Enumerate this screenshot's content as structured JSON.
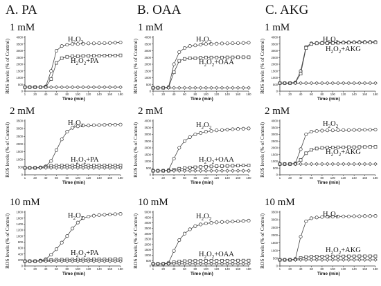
{
  "columns": [
    {
      "label": "A. PA"
    },
    {
      "label": "B. OAA"
    },
    {
      "label": "C. AKG"
    }
  ],
  "common": {
    "ylabel": "ROS levels (% of Control)",
    "xlabel": "Time (min)",
    "x_ticks": [
      "1",
      "20",
      "40",
      "60",
      "80",
      "100",
      "120",
      "140",
      "160",
      "180"
    ]
  },
  "chart_data": [
    {
      "type": "line",
      "panel": "A1",
      "conc_label": "1 mM",
      "xlabel": "Time (min)",
      "ylabel": "ROS levels (% of Control)",
      "x": [
        1,
        10,
        20,
        30,
        40,
        50,
        60,
        70,
        80,
        90,
        100,
        110,
        120,
        130,
        140,
        150,
        160,
        170,
        180
      ],
      "ylim": [
        0,
        4000
      ],
      "y_ticks": [
        "0",
        "500",
        "1000",
        "1500",
        "2000",
        "2500",
        "3000",
        "3500",
        "4000"
      ],
      "series": [
        {
          "name": "H2O2",
          "marker": "circle",
          "values": [
            300,
            300,
            300,
            300,
            350,
            1500,
            3000,
            3350,
            3450,
            3500,
            3500,
            3520,
            3550,
            3550,
            3560,
            3570,
            3580,
            3600,
            3620
          ]
        },
        {
          "name": "H2O2+PA",
          "marker": "square",
          "values": [
            300,
            300,
            300,
            300,
            320,
            900,
            2100,
            2450,
            2550,
            2600,
            2600,
            2620,
            2620,
            2630,
            2630,
            2640,
            2650,
            2650,
            2660
          ]
        },
        {
          "name": "",
          "marker": "diamond",
          "values": [
            300,
            300,
            300,
            300,
            300,
            300,
            300,
            300,
            300,
            300,
            300,
            300,
            300,
            300,
            300,
            300,
            300,
            300,
            300
          ]
        }
      ],
      "labels": [
        "H2O2",
        "H2O2+PA"
      ]
    },
    {
      "type": "line",
      "panel": "B1",
      "conc_label": "1 mM",
      "xlabel": "Time (min)",
      "ylabel": "ROS levels (% of Control)",
      "x": [
        1,
        10,
        20,
        30,
        40,
        50,
        60,
        70,
        80,
        90,
        100,
        110,
        120,
        130,
        140,
        150,
        160,
        170,
        180
      ],
      "ylim": [
        0,
        4000
      ],
      "y_ticks": [
        "0",
        "500",
        "1000",
        "1500",
        "2000",
        "2500",
        "3000",
        "3500",
        "4000"
      ],
      "series": [
        {
          "name": "H2O2",
          "marker": "circle",
          "values": [
            250,
            250,
            250,
            300,
            2000,
            2900,
            3200,
            3350,
            3400,
            3450,
            3500,
            3500,
            3520,
            3540,
            3550,
            3560,
            3570,
            3580,
            3600
          ]
        },
        {
          "name": "H2O2+OAA",
          "marker": "square",
          "values": [
            250,
            250,
            250,
            280,
            1400,
            2250,
            2400,
            2450,
            2450,
            2480,
            2500,
            2500,
            2500,
            2500,
            2510,
            2510,
            2520,
            2520,
            2520
          ]
        },
        {
          "name": "",
          "marker": "diamond",
          "values": [
            250,
            250,
            250,
            250,
            250,
            250,
            250,
            250,
            250,
            250,
            250,
            250,
            250,
            250,
            250,
            250,
            250,
            250,
            250
          ]
        }
      ],
      "labels": [
        "H2O2",
        "H2O2+OAA"
      ]
    },
    {
      "type": "line",
      "panel": "C1",
      "conc_label": "1 mM",
      "xlabel": "Time (min)",
      "ylabel": "ROS levels (% of Control)",
      "x": [
        1,
        10,
        20,
        30,
        40,
        50,
        60,
        70,
        80,
        90,
        100,
        110,
        120,
        130,
        140,
        150,
        160,
        170,
        180
      ],
      "ylim": [
        0,
        4000
      ],
      "y_ticks": [
        "0",
        "500",
        "1000",
        "1500",
        "2000",
        "2500",
        "3000",
        "3500",
        "4000"
      ],
      "series": [
        {
          "name": "H2O2",
          "marker": "circle",
          "values": [
            600,
            600,
            600,
            650,
            1500,
            3300,
            3550,
            3580,
            3600,
            3600,
            3620,
            3620,
            3630,
            3640,
            3640,
            3650,
            3650,
            3650,
            3660
          ]
        },
        {
          "name": "H2O2+AKG",
          "marker": "square",
          "values": [
            600,
            600,
            600,
            630,
            1300,
            3200,
            3500,
            3550,
            3560,
            3570,
            3580,
            3590,
            3600,
            3600,
            3610,
            3610,
            3620,
            3620,
            3620
          ]
        },
        {
          "name": "",
          "marker": "diamond",
          "values": [
            600,
            600,
            600,
            600,
            600,
            600,
            600,
            600,
            600,
            600,
            600,
            600,
            600,
            600,
            600,
            600,
            600,
            600,
            600
          ]
        }
      ],
      "labels": [
        "H2O2",
        "H2O2+AKG"
      ]
    },
    {
      "type": "line",
      "panel": "A2",
      "conc_label": "2 mM",
      "xlabel": "Time (min)",
      "ylabel": "ROS levels (% of Control)",
      "x": [
        1,
        10,
        20,
        30,
        40,
        50,
        60,
        70,
        80,
        90,
        100,
        110,
        120,
        130,
        140,
        150,
        160,
        170,
        180
      ],
      "ylim": [
        0,
        3500
      ],
      "y_ticks": [
        "0",
        "500",
        "1000",
        "1500",
        "2000",
        "2500",
        "3000",
        "3500"
      ],
      "series": [
        {
          "name": "H2O2",
          "marker": "circle",
          "values": [
            450,
            450,
            450,
            480,
            550,
            900,
            1600,
            2300,
            2800,
            3050,
            3150,
            3200,
            3200,
            3220,
            3230,
            3240,
            3250,
            3250,
            3260
          ]
        },
        {
          "name": "H2O2+PA",
          "marker": "square",
          "values": [
            450,
            450,
            450,
            470,
            520,
            580,
            600,
            600,
            600,
            600,
            600,
            600,
            600,
            600,
            610,
            610,
            610,
            610,
            610
          ]
        },
        {
          "name": "",
          "marker": "diamond",
          "values": [
            450,
            450,
            450,
            450,
            450,
            450,
            450,
            450,
            450,
            450,
            450,
            450,
            450,
            450,
            450,
            450,
            450,
            450,
            450
          ]
        }
      ],
      "labels": [
        "H2O2",
        "H2O2+PA"
      ]
    },
    {
      "type": "line",
      "panel": "B2",
      "conc_label": "2 mM",
      "xlabel": "Time (min)",
      "ylabel": "ROS levels (% of Control)",
      "x": [
        1,
        10,
        20,
        30,
        40,
        50,
        60,
        70,
        80,
        90,
        100,
        110,
        120,
        130,
        140,
        150,
        160,
        170,
        180
      ],
      "ylim": [
        0,
        4000
      ],
      "y_ticks": [
        "0",
        "500",
        "1000",
        "1500",
        "2000",
        "2500",
        "3000",
        "3500",
        "4000"
      ],
      "series": [
        {
          "name": "H2O2",
          "marker": "circle",
          "values": [
            300,
            300,
            300,
            350,
            1200,
            2000,
            2500,
            2800,
            3000,
            3100,
            3200,
            3250,
            3300,
            3320,
            3350,
            3380,
            3400,
            3420,
            3440
          ]
        },
        {
          "name": "H2O2+OAA",
          "marker": "square",
          "values": [
            300,
            300,
            300,
            300,
            380,
            450,
            500,
            530,
            560,
            580,
            600,
            620,
            640,
            650,
            660,
            670,
            680,
            690,
            700
          ]
        },
        {
          "name": "",
          "marker": "diamond",
          "values": [
            300,
            300,
            300,
            300,
            300,
            300,
            300,
            300,
            300,
            300,
            300,
            300,
            300,
            300,
            300,
            300,
            300,
            300,
            300
          ]
        }
      ],
      "labels": [
        "H2O2",
        "H2O2+OAA"
      ]
    },
    {
      "type": "line",
      "panel": "C2",
      "conc_label": "2 mM",
      "xlabel": "Time (min)",
      "ylabel": "ROS levels (% of Control)",
      "x": [
        1,
        10,
        20,
        30,
        40,
        50,
        60,
        70,
        80,
        90,
        100,
        110,
        120,
        130,
        140,
        150,
        160,
        170,
        180
      ],
      "ylim": [
        0,
        4000
      ],
      "y_ticks": [
        "0",
        "500",
        "1000",
        "1500",
        "2000",
        "2500",
        "3000",
        "3500",
        "4000"
      ],
      "series": [
        {
          "name": "H2O2",
          "marker": "circle",
          "values": [
            800,
            800,
            800,
            850,
            1900,
            3000,
            3200,
            3250,
            3280,
            3300,
            3300,
            3310,
            3320,
            3320,
            3330,
            3330,
            3340,
            3340,
            3350
          ]
        },
        {
          "name": "H2O2+AKG",
          "marker": "square",
          "values": [
            800,
            800,
            800,
            820,
            1100,
            1600,
            1850,
            1950,
            2000,
            2020,
            2030,
            2040,
            2040,
            2050,
            2050,
            2060,
            2060,
            2070,
            2070
          ]
        },
        {
          "name": "",
          "marker": "diamond",
          "values": [
            800,
            800,
            800,
            800,
            800,
            800,
            800,
            800,
            800,
            800,
            800,
            800,
            800,
            800,
            800,
            800,
            800,
            800,
            800
          ]
        }
      ],
      "labels": [
        "H2O2",
        "H2O2+AKG"
      ]
    },
    {
      "type": "line",
      "panel": "A3",
      "conc_label": "10 mM",
      "xlabel": "Time (min)",
      "ylabel": "ROS levels (% of Control)",
      "x": [
        1,
        10,
        20,
        30,
        40,
        50,
        60,
        70,
        80,
        90,
        100,
        110,
        120,
        130,
        140,
        150,
        160,
        170,
        180
      ],
      "ylim": [
        0,
        1800
      ],
      "y_ticks": [
        "0",
        "200",
        "400",
        "600",
        "800",
        "1000",
        "1200",
        "1400",
        "1600",
        "1800"
      ],
      "series": [
        {
          "name": "H2O2",
          "marker": "circle",
          "values": [
            160,
            160,
            160,
            180,
            230,
            380,
            560,
            780,
            1000,
            1250,
            1450,
            1600,
            1650,
            1680,
            1700,
            1710,
            1720,
            1730,
            1740
          ]
        },
        {
          "name": "H2O2+PA",
          "marker": "square",
          "values": [
            160,
            160,
            160,
            170,
            190,
            200,
            210,
            210,
            215,
            215,
            220,
            220,
            220,
            225,
            225,
            225,
            225,
            230,
            230
          ]
        },
        {
          "name": "",
          "marker": "diamond",
          "values": [
            160,
            160,
            160,
            160,
            160,
            160,
            160,
            160,
            160,
            160,
            160,
            160,
            160,
            160,
            160,
            160,
            160,
            160,
            160
          ]
        }
      ],
      "labels": [
        "H2O2",
        "H2O2+PA"
      ]
    },
    {
      "type": "line",
      "panel": "B3",
      "conc_label": "10 mM",
      "xlabel": "Time (min)",
      "ylabel": "ROS levels (% of Control)",
      "x": [
        1,
        10,
        20,
        30,
        40,
        50,
        60,
        70,
        80,
        90,
        100,
        110,
        120,
        130,
        140,
        150,
        160,
        170,
        180
      ],
      "ylim": [
        0,
        5000
      ],
      "y_ticks": [
        "0",
        "500",
        "1000",
        "1500",
        "2000",
        "2500",
        "3000",
        "3500",
        "4000",
        "4500",
        "5000"
      ],
      "series": [
        {
          "name": "H2O2",
          "marker": "circle",
          "values": [
            200,
            200,
            200,
            300,
            1400,
            2400,
            3000,
            3400,
            3700,
            3850,
            3950,
            4000,
            4050,
            4080,
            4100,
            4120,
            4150,
            4170,
            4200
          ]
        },
        {
          "name": "H2O2+OAA",
          "marker": "square",
          "values": [
            200,
            200,
            200,
            220,
            350,
            420,
            450,
            460,
            470,
            470,
            480,
            480,
            480,
            490,
            490,
            490,
            500,
            500,
            500
          ]
        },
        {
          "name": "",
          "marker": "diamond",
          "values": [
            200,
            200,
            200,
            200,
            200,
            200,
            200,
            200,
            200,
            200,
            200,
            200,
            200,
            200,
            200,
            200,
            200,
            200,
            200
          ]
        }
      ],
      "labels": [
        "H2O2",
        "H2O2+OAA"
      ]
    },
    {
      "type": "line",
      "panel": "C3",
      "conc_label": "10 mM",
      "xlabel": "Time (min)",
      "ylabel": "ROS levels (% of Control)",
      "x": [
        1,
        10,
        20,
        30,
        40,
        50,
        60,
        70,
        80,
        90,
        100,
        110,
        120,
        130,
        140,
        150,
        160,
        170,
        180
      ],
      "ylim": [
        0,
        3500
      ],
      "y_ticks": [
        "0",
        "500",
        "1000",
        "1500",
        "2000",
        "2500",
        "3000",
        "3500"
      ],
      "series": [
        {
          "name": "H2O2",
          "marker": "circle",
          "values": [
            400,
            400,
            400,
            450,
            1900,
            2900,
            3100,
            3150,
            3180,
            3200,
            3200,
            3210,
            3220,
            3220,
            3230,
            3230,
            3240,
            3240,
            3250
          ]
        },
        {
          "name": "H2O2+AKG",
          "marker": "square",
          "values": [
            400,
            400,
            400,
            420,
            520,
            580,
            600,
            610,
            610,
            620,
            620,
            620,
            620,
            625,
            625,
            630,
            630,
            630,
            630
          ]
        },
        {
          "name": "",
          "marker": "diamond",
          "values": [
            400,
            400,
            400,
            400,
            400,
            400,
            400,
            400,
            400,
            400,
            400,
            400,
            400,
            400,
            400,
            400,
            400,
            400,
            400
          ]
        }
      ],
      "labels": [
        "H2O2",
        "H2O2+AKG"
      ]
    }
  ]
}
